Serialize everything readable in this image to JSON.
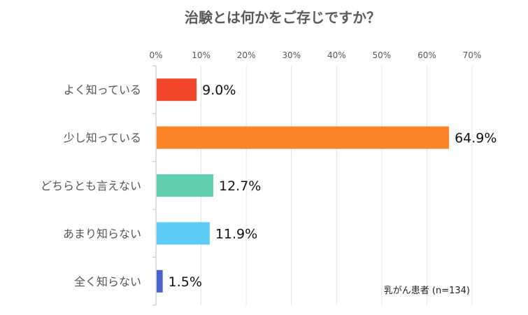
{
  "chart_data": {
    "type": "bar",
    "orientation": "horizontal",
    "title": "治験とは何かをご存じですか？",
    "categories": [
      "よく知っている",
      "少し知っている",
      "どちらとも言えない",
      "あまり知らない",
      "全く知らない"
    ],
    "values": [
      9.0,
      64.9,
      12.7,
      11.9,
      1.5
    ],
    "value_labels": [
      "9.0%",
      "64.9%",
      "12.7%",
      "11.9%",
      "1.5%"
    ],
    "bar_colors": [
      "#f0462a",
      "#fb8628",
      "#5fcfae",
      "#5ccbf5",
      "#4a62c9"
    ],
    "xlim": [
      0,
      70
    ],
    "ticks": [
      0,
      10,
      20,
      30,
      40,
      50,
      60,
      70
    ],
    "tick_labels": [
      "0%",
      "10%",
      "20%",
      "30%",
      "40%",
      "50%",
      "60%",
      "70%"
    ],
    "xaxis_position": "top",
    "grid": true,
    "note": "乳がん患者 (n=134)"
  }
}
